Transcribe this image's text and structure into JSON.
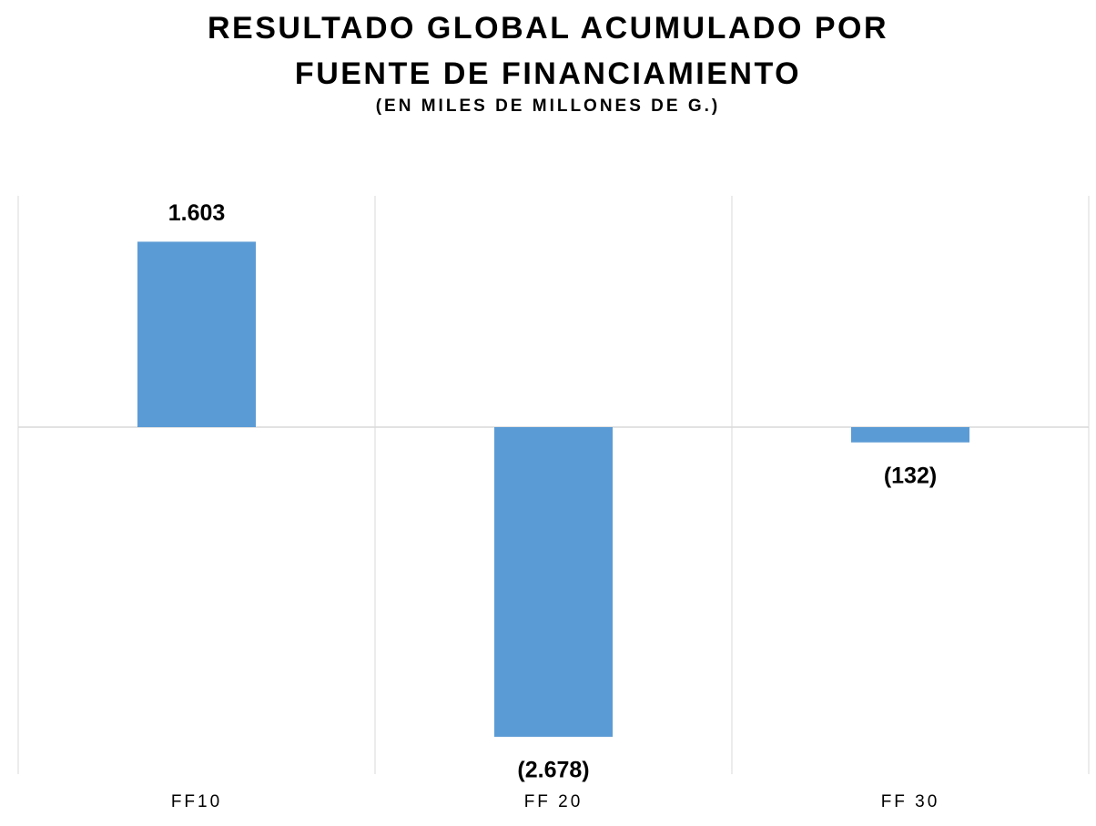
{
  "chart_data": {
    "type": "bar",
    "title": "RESULTADO GLOBAL ACUMULADO POR FUENTE DE FINANCIAMIENTO",
    "subtitle": "(EN MILES DE MILLONES DE G.)",
    "categories": [
      "FF10",
      "FF 20",
      "FF 30"
    ],
    "values": [
      1603,
      -2678,
      -132
    ],
    "value_labels": [
      "1.603",
      "(2.678)",
      "(132)"
    ],
    "color": "#5b9bd5",
    "ylim": [
      -3000,
      2000
    ],
    "grid": true
  }
}
